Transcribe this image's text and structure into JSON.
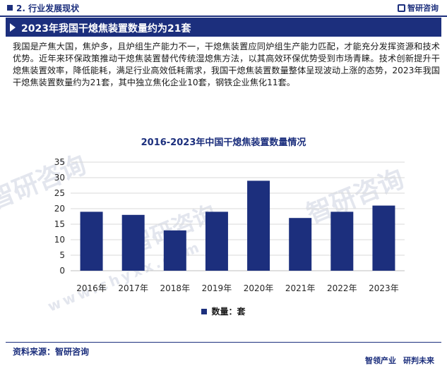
{
  "header": {
    "section": "2. 行业发展现状",
    "brand": "智研咨询"
  },
  "title": "2023年我国干熄焦装置数量约为21套",
  "paragraph": "我国是产焦大国，焦炉多，且炉组生产能力不一，干熄焦装置应同炉组生产能力匹配，才能充分发挥资源和技术优势。近年来环保政策推动干熄焦装置替代传统湿熄焦方法，以其高效环保优势受到市场青睐。技术创新提升干熄焦装置效率，降低能耗，满足行业高效低耗需求，我国干熄焦装置数量整体呈现波动上涨的态势，2023年我国干熄焦装置数量约为21套，其中独立焦化企业10套，钢铁企业焦化11套。",
  "watermark": {
    "text": "智研咨询",
    "url": "www.chyxx.com"
  },
  "footer": {
    "source": "资料来源：智研咨询",
    "brand_left": "智领产业",
    "brand_right": "研判未来"
  },
  "colors": {
    "primary": "#1c2f7d",
    "bar": "#1c2f7d",
    "grid": "#d9d9d9"
  },
  "chart_data": {
    "type": "bar",
    "title": "2016-2023年中国干熄焦装置数量情况",
    "categories": [
      "2016年",
      "2017年",
      "2018年",
      "2019年",
      "2020年",
      "2021年",
      "2022年",
      "2023年"
    ],
    "series": [
      {
        "name": "数量：套",
        "values": [
          19,
          18,
          13,
          19,
          29,
          17,
          19,
          21
        ]
      }
    ],
    "ylim": [
      0,
      35
    ],
    "yticks": [
      0,
      5,
      10,
      15,
      20,
      25,
      30,
      35
    ],
    "grid": true,
    "legend": "bottom"
  }
}
